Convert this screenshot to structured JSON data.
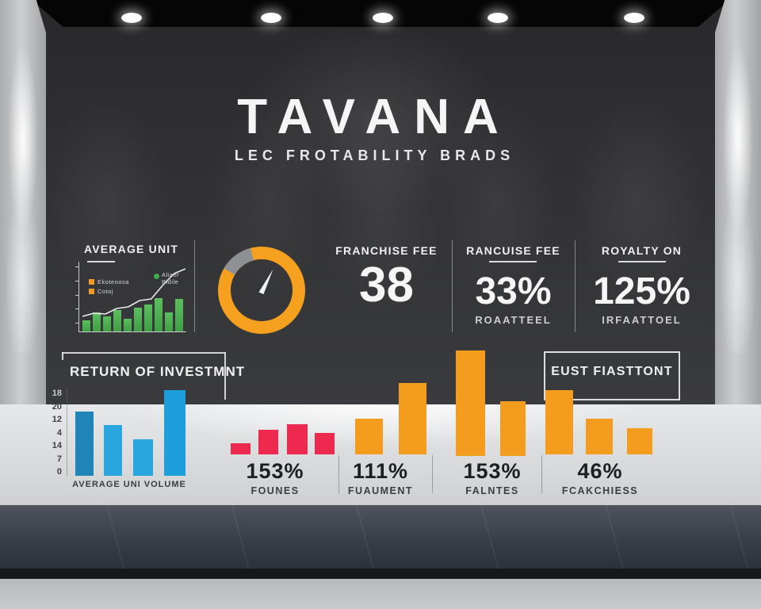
{
  "brand": {
    "title": "TAVANA",
    "subtitle": "LEC FROTABILITY BRADS"
  },
  "stats_row": {
    "average_unit": {
      "heading": "AVERAGE UNIT",
      "legend_items": [
        {
          "label": "Ekoteoosa",
          "color": "#f09a28"
        },
        {
          "label": "Cotoj",
          "color": "#f09a28"
        }
      ],
      "line_legend": {
        "label_line1": "Aliaer",
        "label_line2": "Pidile",
        "color": "#3fae4d"
      }
    },
    "franchise_fee": {
      "heading": "FRANCHISE FEE",
      "value": "38"
    },
    "rancuise_fee": {
      "heading": "RANCUISE FEE",
      "value": "33%",
      "sublabel": "ROAATTEEL"
    },
    "royalty_on": {
      "heading": "ROYALTY ON",
      "value": "125%",
      "sublabel": "IRFAATTOEL"
    }
  },
  "roi_section": {
    "heading": "RETURN OF INVESTMNT",
    "x_axis_label": "AVERAGE UNI VOLUME",
    "y_tick_labels": [
      "18",
      "20",
      "12",
      "4",
      "14",
      "7",
      "0"
    ]
  },
  "eust_box": {
    "heading": "EUST FIASTTONT"
  },
  "metrics": [
    {
      "value": "153%",
      "label": "FOUNES"
    },
    {
      "value": "111%",
      "label": "FUAUMENT"
    },
    {
      "value": "153%",
      "label": "FALNTES"
    },
    {
      "value": "46%",
      "label": "FCAKCHIESS"
    }
  ],
  "colors": {
    "wall": "#2f2f31",
    "orange_accent": "#f5a01e",
    "green_bars": "#4db04f",
    "blue_bars": "#2aa6df",
    "red_bars": "#ee2950",
    "gauge_gray": "#8e9194",
    "dark_text": "#1d1e22"
  },
  "chart_data": [
    {
      "type": "bar",
      "name": "average-unit-mini-chart",
      "title": "AVERAGE UNIT",
      "values": [
        14,
        24,
        19,
        27,
        16,
        30,
        34,
        42,
        24,
        41
      ],
      "bar_color": "#4db04f",
      "line_overlay": [
        19,
        23,
        22,
        29,
        31,
        39,
        41,
        58,
        73,
        79
      ],
      "grid": false,
      "legend_position": "top-left"
    },
    {
      "type": "pie",
      "name": "gauge-donut",
      "segments": [
        {
          "name": "orange",
          "color": "#f5a01e",
          "fraction": 0.875
        },
        {
          "name": "gray",
          "color": "#8e9194",
          "fraction": 0.125
        }
      ],
      "gray_start_deg_from_top": 300,
      "needle_angle_deg_from_top": 28
    },
    {
      "type": "bar",
      "name": "return-of-investment-chart",
      "title": "RETURN OF INVESTMNT",
      "xlabel": "AVERAGE UNI VOLUME",
      "y_tick_labels": [
        "18",
        "20",
        "12",
        "4",
        "14",
        "7",
        "0"
      ],
      "values": [
        81,
        64,
        46,
        108
      ],
      "bar_colors": [
        "#1f84b8",
        "#2aa6df",
        "#2aa6df",
        "#1d9fdc"
      ]
    },
    {
      "type": "bar",
      "name": "metric-bars-founes",
      "values": [
        14,
        31,
        38,
        27
      ],
      "bar_color": "#ee2950",
      "caption": "153% FOUNES"
    },
    {
      "type": "bar",
      "name": "metric-bars-fuaument",
      "values": [
        45,
        90
      ],
      "bar_color": "#f49c1d",
      "caption": "111% FUAUMENT"
    },
    {
      "type": "bar",
      "name": "metric-bars-falntes",
      "values": [
        133,
        69
      ],
      "bar_color": "#f49c1d",
      "caption": "153% FALNTES"
    },
    {
      "type": "bar",
      "name": "metric-bars-fcakchiess",
      "values": [
        81,
        45,
        33
      ],
      "bar_color": "#f49c1d",
      "caption": "46% FCAKCHIESS"
    }
  ]
}
